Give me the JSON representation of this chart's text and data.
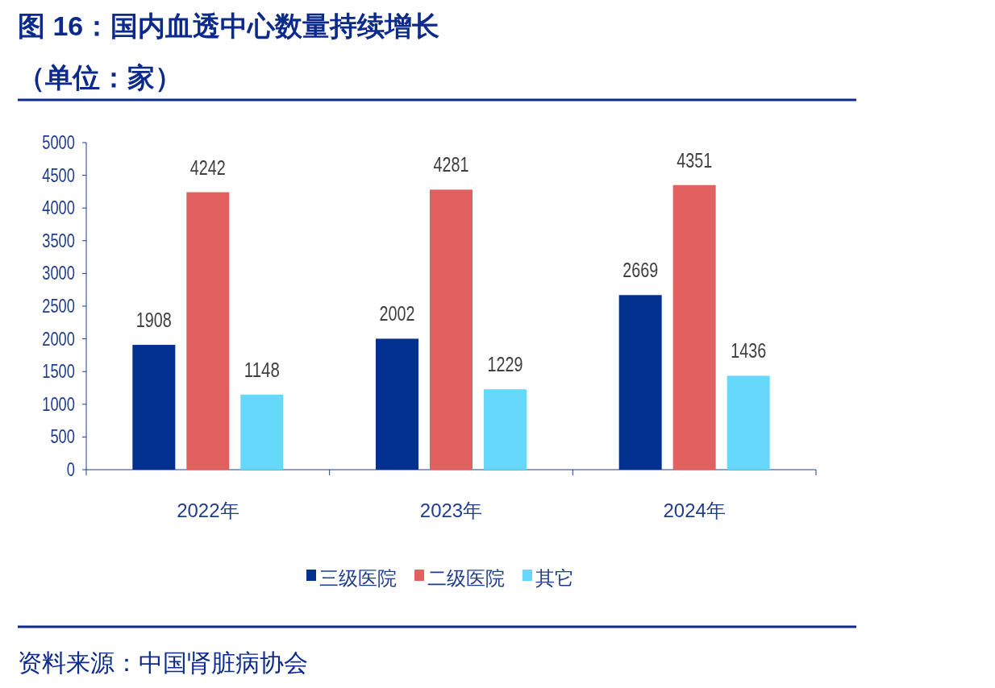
{
  "chart_data": {
    "type": "bar",
    "title": "图 16：国内血透中心数量持续增长",
    "subtitle": "（单位：家）",
    "categories": [
      "2022年",
      "2023年",
      "2024年"
    ],
    "series": [
      {
        "name": "三级医院",
        "color": "#00318f",
        "values": [
          1908,
          2002,
          2669
        ]
      },
      {
        "name": "二级医院",
        "color": "#e26060",
        "values": [
          4242,
          4281,
          4351
        ]
      },
      {
        "name": "其它",
        "color": "#66d8fc",
        "values": [
          1148,
          1229,
          1436
        ]
      }
    ],
    "ylim": [
      0,
      5000
    ],
    "yticks": [
      0,
      500,
      1000,
      1500,
      2000,
      2500,
      3000,
      3500,
      4000,
      4500,
      5000
    ],
    "data_labels": true,
    "legend": "bottom",
    "grid": false,
    "annotations": [
      "资料来源：中国肾脏病协会"
    ]
  }
}
